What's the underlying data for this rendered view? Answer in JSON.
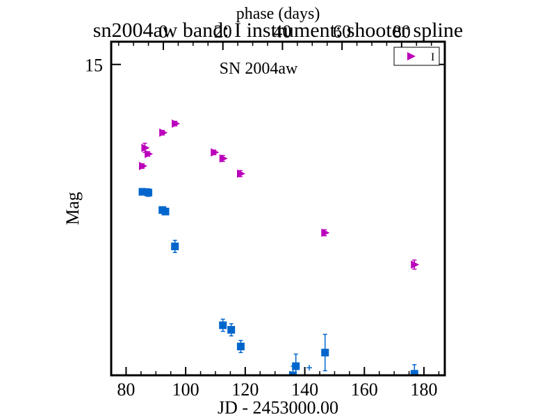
{
  "chart_data": {
    "type": "scatter",
    "title": "sn2004aw band: I instrument: shooter spline",
    "top_axis_label": "phase (days)",
    "annotation": "SN 2004aw",
    "xlabel": "JD - 2453000.00",
    "ylabel": "Mag",
    "xlim": [
      75,
      187
    ],
    "ylim": [
      17.05,
      14.85
    ],
    "y_inverted": true,
    "x_ticks": [
      80,
      100,
      120,
      140,
      160,
      180
    ],
    "x_tick_labels": [
      "80",
      "100",
      "120",
      "140",
      "160",
      "180"
    ],
    "y_ticks": [
      15
    ],
    "y_tick_labels": [
      "15"
    ],
    "top_ticks": [
      0,
      20,
      40,
      60,
      80
    ],
    "top_tick_labels": [
      "0",
      "20",
      "40",
      "60",
      "80"
    ],
    "phase_zero_jd": 92.5,
    "legend": {
      "position": "top-right",
      "entries": [
        {
          "label": "I",
          "series": 0
        }
      ]
    },
    "series": [
      {
        "name": "I",
        "marker": "triangle-right",
        "color": "#bb00bb",
        "points": [
          {
            "x": 85.5,
            "y": 15.67,
            "err": 0.015
          },
          {
            "x": 86.3,
            "y": 15.55,
            "err": 0.03
          },
          {
            "x": 87.4,
            "y": 15.59,
            "err": 0.015
          },
          {
            "x": 92.3,
            "y": 15.45,
            "err": 0.015
          },
          {
            "x": 96.5,
            "y": 15.39,
            "err": 0.015
          },
          {
            "x": 109.6,
            "y": 15.58,
            "err": 0.015
          },
          {
            "x": 112.5,
            "y": 15.62,
            "err": 0.02
          },
          {
            "x": 118.4,
            "y": 15.72,
            "err": 0.02
          },
          {
            "x": 146.7,
            "y": 16.11,
            "err": 0.02
          },
          {
            "x": 176.8,
            "y": 16.32,
            "err": 0.03
          }
        ]
      },
      {
        "name": "",
        "marker": "square",
        "color": "#0066cc",
        "points": [
          {
            "x": 85.5,
            "y": 15.84,
            "err": 0.015
          },
          {
            "x": 87.5,
            "y": 15.845,
            "err": 0.025
          },
          {
            "x": 92.2,
            "y": 15.96,
            "err": 0.02
          },
          {
            "x": 93.2,
            "y": 15.97,
            "err": 0.015
          },
          {
            "x": 96.4,
            "y": 16.2,
            "err": 0.04
          },
          {
            "x": 112.5,
            "y": 16.72,
            "err": 0.04
          },
          {
            "x": 115.3,
            "y": 16.75,
            "err": 0.04
          },
          {
            "x": 118.5,
            "y": 16.86,
            "err": 0.04
          },
          {
            "x": 136.0,
            "y": 17.05,
            "err": 0.06
          },
          {
            "x": 137.0,
            "y": 16.99,
            "err": 0.08
          },
          {
            "x": 146.8,
            "y": 16.9,
            "err": 0.12
          },
          {
            "x": 176.8,
            "y": 17.04,
            "err": 0.06
          }
        ]
      },
      {
        "name": "",
        "marker": "plus",
        "color": "#0066cc",
        "points": [
          {
            "x": 141.5,
            "y": 17.0,
            "err": 0.0
          }
        ]
      }
    ]
  }
}
